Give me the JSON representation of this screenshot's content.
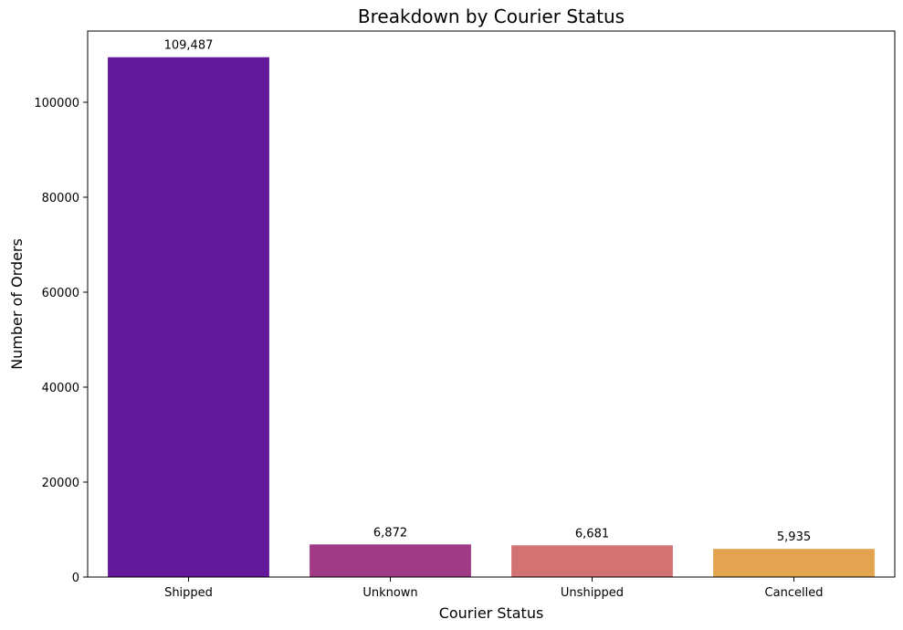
{
  "chart_data": {
    "type": "bar",
    "title": "Breakdown by Courier Status",
    "xlabel": "Courier Status",
    "ylabel": "Number of Orders",
    "categories": [
      "Shipped",
      "Unknown",
      "Unshipped",
      "Cancelled"
    ],
    "values": [
      109487,
      6872,
      6681,
      5935
    ],
    "value_labels": [
      "109,487",
      "6,872",
      "6,681",
      "5,935"
    ],
    "colors": [
      "#63189a",
      "#a03a86",
      "#d27272",
      "#e4a34e"
    ],
    "ylim": [
      0,
      115000
    ],
    "yticks": [
      0,
      20000,
      40000,
      60000,
      80000,
      100000
    ],
    "ytick_labels": [
      "0",
      "20000",
      "40000",
      "60000",
      "80000",
      "100000"
    ],
    "grid": false,
    "legend": "none"
  }
}
